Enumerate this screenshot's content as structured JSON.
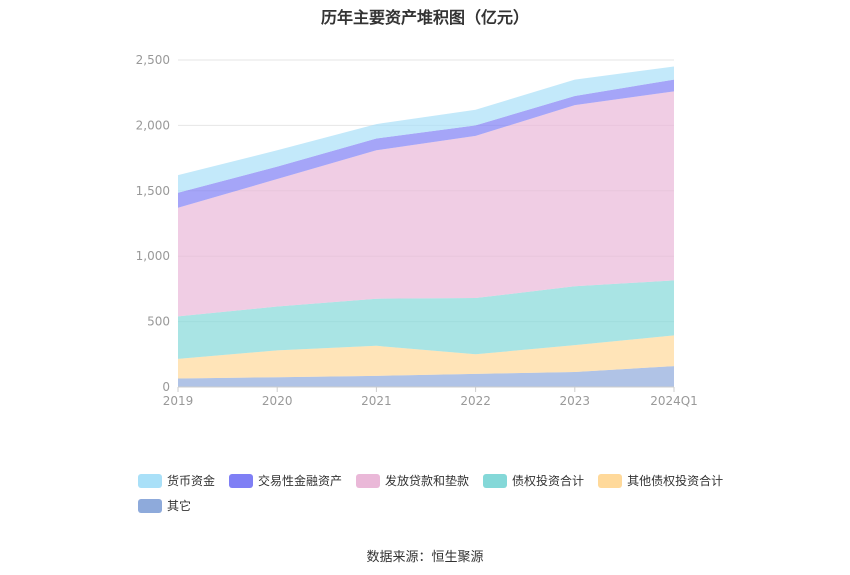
{
  "title": "历年主要资产堆积图（亿元）",
  "source": "数据来源：恒生聚源",
  "chart_data": {
    "type": "area",
    "stacked": true,
    "categories": [
      "2019",
      "2020",
      "2021",
      "2022",
      "2023",
      "2024Q1"
    ],
    "y_ticks": [
      "0",
      "500",
      "1,000",
      "1,500",
      "2,000",
      "2,500"
    ],
    "ylim": [
      0,
      2500
    ],
    "grid": true,
    "legend_position": "bottom",
    "series": [
      {
        "name": "其它",
        "color": "#8eaadb",
        "values": [
          65,
          75,
          85,
          100,
          115,
          160
        ]
      },
      {
        "name": "其他债权投资合计",
        "color": "#ffd99a",
        "values": [
          150,
          205,
          230,
          150,
          205,
          235
        ]
      },
      {
        "name": "债权投资合计",
        "color": "#84d8d8",
        "values": [
          325,
          335,
          360,
          430,
          450,
          420
        ]
      },
      {
        "name": "发放贷款和垫款",
        "color": "#eab8d8",
        "values": [
          830,
          975,
          1135,
          1240,
          1385,
          1445
        ]
      },
      {
        "name": "交易性金融资产",
        "color": "#7f7ff5",
        "values": [
          115,
          95,
          90,
          80,
          70,
          90
        ]
      },
      {
        "name": "货币资金",
        "color": "#a9e0f8",
        "values": [
          135,
          125,
          110,
          120,
          125,
          100
        ]
      }
    ],
    "legend_order": [
      "货币资金",
      "交易性金融资产",
      "发放贷款和垫款",
      "债权投资合计",
      "其他债权投资合计",
      "其它"
    ]
  }
}
